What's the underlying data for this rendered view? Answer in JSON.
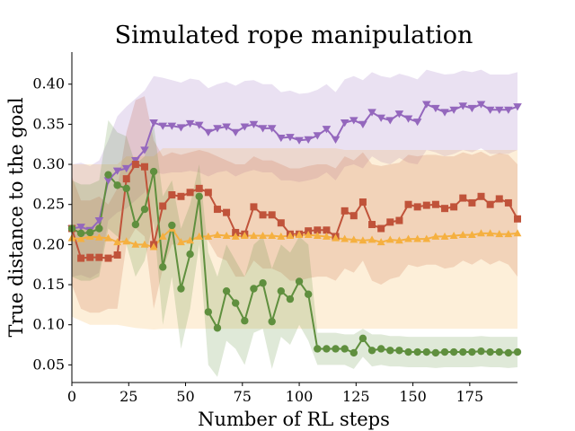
{
  "chart_data": {
    "type": "line",
    "title": "Simulated rope manipulation",
    "xlabel": "Number of RL steps",
    "ylabel": "True distance to the goal",
    "xlim": [
      0,
      196
    ],
    "ylim": [
      0.028,
      0.44
    ],
    "xticks": [
      0,
      25,
      50,
      75,
      100,
      125,
      150,
      175
    ],
    "yticks": [
      0.05,
      0.1,
      0.15,
      0.2,
      0.25,
      0.3,
      0.35,
      0.4
    ],
    "x": [
      0,
      4,
      8,
      12,
      16,
      20,
      24,
      28,
      32,
      36,
      40,
      44,
      48,
      52,
      56,
      60,
      64,
      68,
      72,
      76,
      80,
      84,
      88,
      92,
      96,
      100,
      104,
      108,
      112,
      116,
      120,
      124,
      128,
      132,
      136,
      140,
      144,
      148,
      152,
      156,
      160,
      164,
      168,
      172,
      176,
      180,
      184,
      188,
      192,
      196
    ],
    "series": [
      {
        "name": "purple",
        "color": "#9467bd",
        "marker": "triangle-down",
        "values": [
          0.22,
          0.222,
          0.218,
          0.23,
          0.28,
          0.292,
          0.295,
          0.305,
          0.318,
          0.352,
          0.348,
          0.348,
          0.346,
          0.351,
          0.349,
          0.34,
          0.345,
          0.347,
          0.34,
          0.347,
          0.35,
          0.345,
          0.345,
          0.333,
          0.334,
          0.33,
          0.331,
          0.336,
          0.344,
          0.331,
          0.352,
          0.355,
          0.35,
          0.365,
          0.358,
          0.355,
          0.363,
          0.357,
          0.353,
          0.375,
          0.37,
          0.365,
          0.368,
          0.373,
          0.37,
          0.375,
          0.368,
          0.368,
          0.368,
          0.372
        ],
        "band_upper": [
          0.3,
          0.302,
          0.298,
          0.305,
          0.33,
          0.36,
          0.372,
          0.382,
          0.392,
          0.41,
          0.408,
          0.405,
          0.402,
          0.407,
          0.405,
          0.395,
          0.4,
          0.403,
          0.398,
          0.404,
          0.405,
          0.4,
          0.4,
          0.39,
          0.392,
          0.388,
          0.389,
          0.393,
          0.4,
          0.39,
          0.406,
          0.41,
          0.405,
          0.415,
          0.41,
          0.408,
          0.413,
          0.41,
          0.406,
          0.418,
          0.415,
          0.412,
          0.413,
          0.417,
          0.415,
          0.418,
          0.412,
          0.412,
          0.412,
          0.415
        ],
        "band_lower": [
          0.16,
          0.162,
          0.158,
          0.165,
          0.23,
          0.24,
          0.245,
          0.255,
          0.265,
          0.29,
          0.288,
          0.29,
          0.29,
          0.292,
          0.29,
          0.285,
          0.29,
          0.292,
          0.285,
          0.29,
          0.293,
          0.29,
          0.29,
          0.28,
          0.28,
          0.278,
          0.28,
          0.283,
          0.29,
          0.28,
          0.297,
          0.3,
          0.295,
          0.31,
          0.303,
          0.3,
          0.308,
          0.302,
          0.3,
          0.318,
          0.315,
          0.31,
          0.313,
          0.318,
          0.315,
          0.32,
          0.313,
          0.313,
          0.313,
          0.318
        ]
      },
      {
        "name": "red",
        "color": "#c0533a",
        "marker": "square",
        "values": [
          0.22,
          0.183,
          0.184,
          0.184,
          0.183,
          0.187,
          0.282,
          0.3,
          0.297,
          0.2,
          0.248,
          0.262,
          0.26,
          0.265,
          0.27,
          0.265,
          0.244,
          0.24,
          0.215,
          0.213,
          0.247,
          0.237,
          0.237,
          0.227,
          0.213,
          0.213,
          0.217,
          0.218,
          0.218,
          0.21,
          0.242,
          0.236,
          0.253,
          0.225,
          0.22,
          0.228,
          0.23,
          0.25,
          0.247,
          0.249,
          0.25,
          0.245,
          0.247,
          0.258,
          0.252,
          0.26,
          0.25,
          0.257,
          0.252,
          0.232
        ],
        "band_upper": [
          0.285,
          0.255,
          0.255,
          0.26,
          0.25,
          0.27,
          0.34,
          0.38,
          0.385,
          0.33,
          0.31,
          0.315,
          0.312,
          0.315,
          0.318,
          0.315,
          0.31,
          0.305,
          0.3,
          0.3,
          0.31,
          0.305,
          0.305,
          0.3,
          0.295,
          0.295,
          0.298,
          0.3,
          0.3,
          0.295,
          0.31,
          0.305,
          0.315,
          0.3,
          0.298,
          0.3,
          0.302,
          0.312,
          0.31,
          0.312,
          0.312,
          0.31,
          0.31,
          0.315,
          0.312,
          0.316,
          0.31,
          0.314,
          0.312,
          0.3
        ],
        "band_lower": [
          0.15,
          0.12,
          0.115,
          0.115,
          0.12,
          0.12,
          0.2,
          0.22,
          0.21,
          0.12,
          0.17,
          0.2,
          0.2,
          0.205,
          0.21,
          0.205,
          0.185,
          0.18,
          0.16,
          0.16,
          0.18,
          0.17,
          0.17,
          0.165,
          0.155,
          0.155,
          0.158,
          0.16,
          0.16,
          0.155,
          0.17,
          0.165,
          0.18,
          0.155,
          0.15,
          0.157,
          0.16,
          0.175,
          0.172,
          0.175,
          0.175,
          0.17,
          0.172,
          0.18,
          0.175,
          0.182,
          0.175,
          0.18,
          0.175,
          0.16
        ]
      },
      {
        "name": "orange",
        "color": "#f5b040",
        "marker": "triangle-up",
        "values": [
          0.208,
          0.207,
          0.21,
          0.209,
          0.208,
          0.203,
          0.204,
          0.2,
          0.2,
          0.197,
          0.21,
          0.22,
          0.203,
          0.205,
          0.21,
          0.21,
          0.212,
          0.211,
          0.21,
          0.211,
          0.211,
          0.211,
          0.211,
          0.21,
          0.211,
          0.212,
          0.212,
          0.211,
          0.21,
          0.208,
          0.207,
          0.206,
          0.205,
          0.206,
          0.203,
          0.206,
          0.205,
          0.207,
          0.207,
          0.207,
          0.21,
          0.21,
          0.211,
          0.212,
          0.212,
          0.214,
          0.214,
          0.213,
          0.213,
          0.214
        ],
        "band_upper": [
          0.3,
          0.3,
          0.3,
          0.3,
          0.3,
          0.3,
          0.31,
          0.31,
          0.31,
          0.31,
          0.32,
          0.32,
          0.32,
          0.32,
          0.32,
          0.32,
          0.32,
          0.32,
          0.32,
          0.32,
          0.32,
          0.32,
          0.32,
          0.32,
          0.32,
          0.32,
          0.32,
          0.32,
          0.32,
          0.32,
          0.318,
          0.318,
          0.318,
          0.318,
          0.318,
          0.318,
          0.318,
          0.318,
          0.318,
          0.318,
          0.318,
          0.318,
          0.318,
          0.318,
          0.318,
          0.318,
          0.318,
          0.318,
          0.318,
          0.318
        ],
        "band_lower": [
          0.11,
          0.105,
          0.1,
          0.1,
          0.1,
          0.1,
          0.098,
          0.096,
          0.095,
          0.094,
          0.095,
          0.095,
          0.095,
          0.095,
          0.095,
          0.095,
          0.095,
          0.095,
          0.095,
          0.095,
          0.095,
          0.095,
          0.095,
          0.095,
          0.095,
          0.095,
          0.095,
          0.095,
          0.095,
          0.095,
          0.095,
          0.095,
          0.095,
          0.095,
          0.095,
          0.095,
          0.095,
          0.095,
          0.095,
          0.095,
          0.095,
          0.095,
          0.095,
          0.095,
          0.095,
          0.095,
          0.095,
          0.095,
          0.095,
          0.095
        ]
      },
      {
        "name": "green",
        "color": "#5f8f3e",
        "marker": "circle",
        "values": [
          0.22,
          0.214,
          0.215,
          0.22,
          0.287,
          0.274,
          0.27,
          0.225,
          0.244,
          0.291,
          0.172,
          0.224,
          0.145,
          0.188,
          0.26,
          0.116,
          0.096,
          0.142,
          0.127,
          0.105,
          0.145,
          0.152,
          0.104,
          0.142,
          0.132,
          0.154,
          0.138,
          0.07,
          0.07,
          0.07,
          0.07,
          0.065,
          0.083,
          0.068,
          0.07,
          0.068,
          0.068,
          0.066,
          0.066,
          0.066,
          0.065,
          0.066,
          0.066,
          0.066,
          0.066,
          0.067,
          0.066,
          0.066,
          0.065,
          0.066
        ],
        "band_upper": [
          0.28,
          0.275,
          0.275,
          0.28,
          0.355,
          0.34,
          0.335,
          0.3,
          0.31,
          0.35,
          0.26,
          0.28,
          0.22,
          0.25,
          0.3,
          0.19,
          0.16,
          0.2,
          0.18,
          0.16,
          0.2,
          0.21,
          0.17,
          0.2,
          0.19,
          0.21,
          0.2,
          0.09,
          0.09,
          0.09,
          0.088,
          0.088,
          0.095,
          0.088,
          0.088,
          0.086,
          0.086,
          0.085,
          0.085,
          0.085,
          0.085,
          0.085,
          0.085,
          0.085,
          0.085,
          0.086,
          0.085,
          0.085,
          0.085,
          0.085
        ],
        "band_lower": [
          0.16,
          0.155,
          0.155,
          0.16,
          0.22,
          0.21,
          0.2,
          0.16,
          0.18,
          0.23,
          0.1,
          0.16,
          0.07,
          0.12,
          0.2,
          0.05,
          0.035,
          0.08,
          0.07,
          0.05,
          0.09,
          0.095,
          0.045,
          0.085,
          0.075,
          0.1,
          0.08,
          0.05,
          0.05,
          0.05,
          0.05,
          0.045,
          0.06,
          0.048,
          0.05,
          0.048,
          0.048,
          0.047,
          0.047,
          0.047,
          0.046,
          0.047,
          0.047,
          0.047,
          0.047,
          0.048,
          0.047,
          0.047,
          0.046,
          0.047
        ]
      }
    ]
  }
}
